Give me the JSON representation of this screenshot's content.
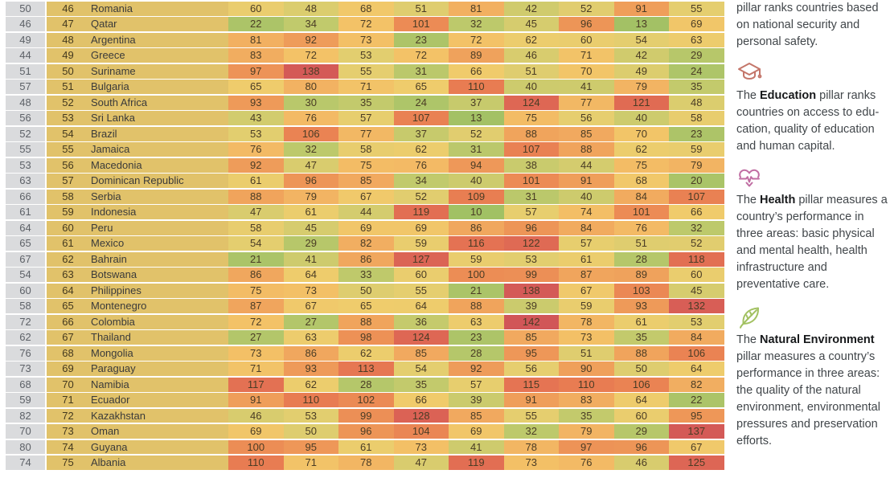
{
  "table": {
    "rows": [
      {
        "prev": "50",
        "rank": "46",
        "country": "Romania",
        "values": [
          60,
          48,
          68,
          51,
          81,
          42,
          52,
          91,
          55
        ]
      },
      {
        "prev": "46",
        "rank": "47",
        "country": "Qatar",
        "values": [
          22,
          34,
          72,
          101,
          32,
          45,
          96,
          13,
          69
        ]
      },
      {
        "prev": "49",
        "rank": "48",
        "country": "Argentina",
        "values": [
          81,
          92,
          73,
          23,
          72,
          62,
          60,
          54,
          63
        ]
      },
      {
        "prev": "44",
        "rank": "49",
        "country": "Greece",
        "values": [
          83,
          72,
          53,
          72,
          89,
          46,
          71,
          42,
          29
        ]
      },
      {
        "prev": "51",
        "rank": "50",
        "country": "Suriname",
        "values": [
          97,
          138,
          55,
          31,
          66,
          51,
          70,
          49,
          24
        ]
      },
      {
        "prev": "57",
        "rank": "51",
        "country": "Bulgaria",
        "values": [
          65,
          80,
          71,
          65,
          110,
          40,
          41,
          79,
          35
        ]
      },
      {
        "prev": "48",
        "rank": "52",
        "country": "South Africa",
        "values": [
          93,
          30,
          35,
          24,
          37,
          124,
          77,
          121,
          48
        ]
      },
      {
        "prev": "56",
        "rank": "53",
        "country": "Sri Lanka",
        "values": [
          43,
          76,
          57,
          107,
          13,
          75,
          56,
          40,
          58
        ]
      },
      {
        "prev": "52",
        "rank": "54",
        "country": "Brazil",
        "values": [
          53,
          106,
          77,
          37,
          52,
          88,
          85,
          70,
          23
        ]
      },
      {
        "prev": "55",
        "rank": "55",
        "country": "Jamaica",
        "values": [
          76,
          32,
          58,
          62,
          31,
          107,
          88,
          62,
          59
        ]
      },
      {
        "prev": "53",
        "rank": "56",
        "country": "Macedonia",
        "values": [
          92,
          47,
          75,
          76,
          94,
          38,
          44,
          75,
          79
        ]
      },
      {
        "prev": "63",
        "rank": "57",
        "country": "Dominican Republic",
        "values": [
          61,
          96,
          85,
          34,
          40,
          101,
          91,
          68,
          20
        ]
      },
      {
        "prev": "66",
        "rank": "58",
        "country": "Serbia",
        "values": [
          88,
          79,
          67,
          52,
          109,
          31,
          40,
          84,
          107
        ]
      },
      {
        "prev": "61",
        "rank": "59",
        "country": "Indonesia",
        "values": [
          47,
          61,
          44,
          119,
          10,
          57,
          74,
          101,
          66
        ]
      },
      {
        "prev": "64",
        "rank": "60",
        "country": "Peru",
        "values": [
          58,
          45,
          69,
          69,
          86,
          96,
          84,
          76,
          32
        ]
      },
      {
        "prev": "65",
        "rank": "61",
        "country": "Mexico",
        "values": [
          54,
          29,
          82,
          59,
          116,
          122,
          57,
          51,
          52
        ]
      },
      {
        "prev": "67",
        "rank": "62",
        "country": "Bahrain",
        "values": [
          21,
          41,
          86,
          127,
          59,
          53,
          61,
          28,
          118
        ]
      },
      {
        "prev": "54",
        "rank": "63",
        "country": "Botswana",
        "values": [
          86,
          64,
          33,
          60,
          100,
          99,
          87,
          89,
          60
        ]
      },
      {
        "prev": "60",
        "rank": "64",
        "country": "Philippines",
        "values": [
          75,
          73,
          50,
          55,
          21,
          138,
          67,
          103,
          45
        ]
      },
      {
        "prev": "58",
        "rank": "65",
        "country": "Montenegro",
        "values": [
          87,
          67,
          65,
          64,
          88,
          39,
          59,
          93,
          132
        ]
      },
      {
        "prev": "72",
        "rank": "66",
        "country": "Colombia",
        "values": [
          72,
          27,
          88,
          36,
          63,
          142,
          78,
          61,
          53
        ]
      },
      {
        "prev": "62",
        "rank": "67",
        "country": "Thailand",
        "values": [
          27,
          63,
          98,
          124,
          23,
          85,
          73,
          35,
          84
        ]
      },
      {
        "prev": "76",
        "rank": "68",
        "country": "Mongolia",
        "values": [
          73,
          86,
          62,
          85,
          28,
          95,
          51,
          88,
          106
        ]
      },
      {
        "prev": "73",
        "rank": "69",
        "country": "Paraguay",
        "values": [
          71,
          93,
          113,
          54,
          92,
          56,
          90,
          50,
          64
        ]
      },
      {
        "prev": "68",
        "rank": "70",
        "country": "Namibia",
        "values": [
          117,
          62,
          28,
          35,
          57,
          115,
          110,
          106,
          82
        ]
      },
      {
        "prev": "59",
        "rank": "71",
        "country": "Ecuador",
        "values": [
          91,
          110,
          102,
          66,
          39,
          91,
          83,
          64,
          22
        ]
      },
      {
        "prev": "82",
        "rank": "72",
        "country": "Kazakhstan",
        "values": [
          46,
          53,
          99,
          128,
          85,
          55,
          35,
          60,
          95
        ]
      },
      {
        "prev": "70",
        "rank": "73",
        "country": "Oman",
        "values": [
          69,
          50,
          96,
          104,
          69,
          32,
          79,
          29,
          137
        ]
      },
      {
        "prev": "80",
        "rank": "74",
        "country": "Guyana",
        "values": [
          100,
          95,
          61,
          73,
          41,
          78,
          97,
          96,
          67
        ]
      },
      {
        "prev": "74",
        "rank": "75",
        "country": "Albania",
        "values": [
          110,
          71,
          78,
          47,
          119,
          73,
          76,
          46,
          125
        ]
      }
    ]
  },
  "sidebar": {
    "top_fragment": "pillar ranks countries based on national security and personal safety.",
    "sections": [
      {
        "icon": "graduation-cap-icon",
        "icon_color": "#c4766a",
        "text_before": "The ",
        "term": "Education",
        "text_after": " pillar ranks countries on access to edu­cation, quality of education and human capital."
      },
      {
        "icon": "heart-pulse-icon",
        "icon_color": "#c06da2",
        "text_before": "The ",
        "term": "Health",
        "text_after": " pillar measures a country’s performance in three areas: basic physical and mental health, health infrastructure and preventative care."
      },
      {
        "icon": "leaf-icon",
        "icon_color": "#a2c161",
        "text_before": "The ",
        "term": "Natural Environment",
        "text_after": " pillar measures a country’s performance in three areas: the quality of the natural environment, environmental pressures and preservation efforts."
      }
    ]
  },
  "colors": {
    "rank_col_bg": "#dadbdd",
    "country_col_bg": "#e1c26a",
    "row_separator": "#ffffff",
    "heat_stops": [
      [
        1,
        "#9cbe61"
      ],
      [
        15,
        "#a4c266"
      ],
      [
        25,
        "#afc569"
      ],
      [
        35,
        "#c3ca6c"
      ],
      [
        45,
        "#d6cc6e"
      ],
      [
        55,
        "#e5ce6f"
      ],
      [
        65,
        "#efcc6c"
      ],
      [
        72,
        "#f3c267"
      ],
      [
        80,
        "#f2b262"
      ],
      [
        90,
        "#efa05b"
      ],
      [
        100,
        "#ec8d55"
      ],
      [
        110,
        "#e87c52"
      ],
      [
        120,
        "#e16c53"
      ],
      [
        130,
        "#d96056"
      ],
      [
        145,
        "#cf5458"
      ]
    ]
  }
}
